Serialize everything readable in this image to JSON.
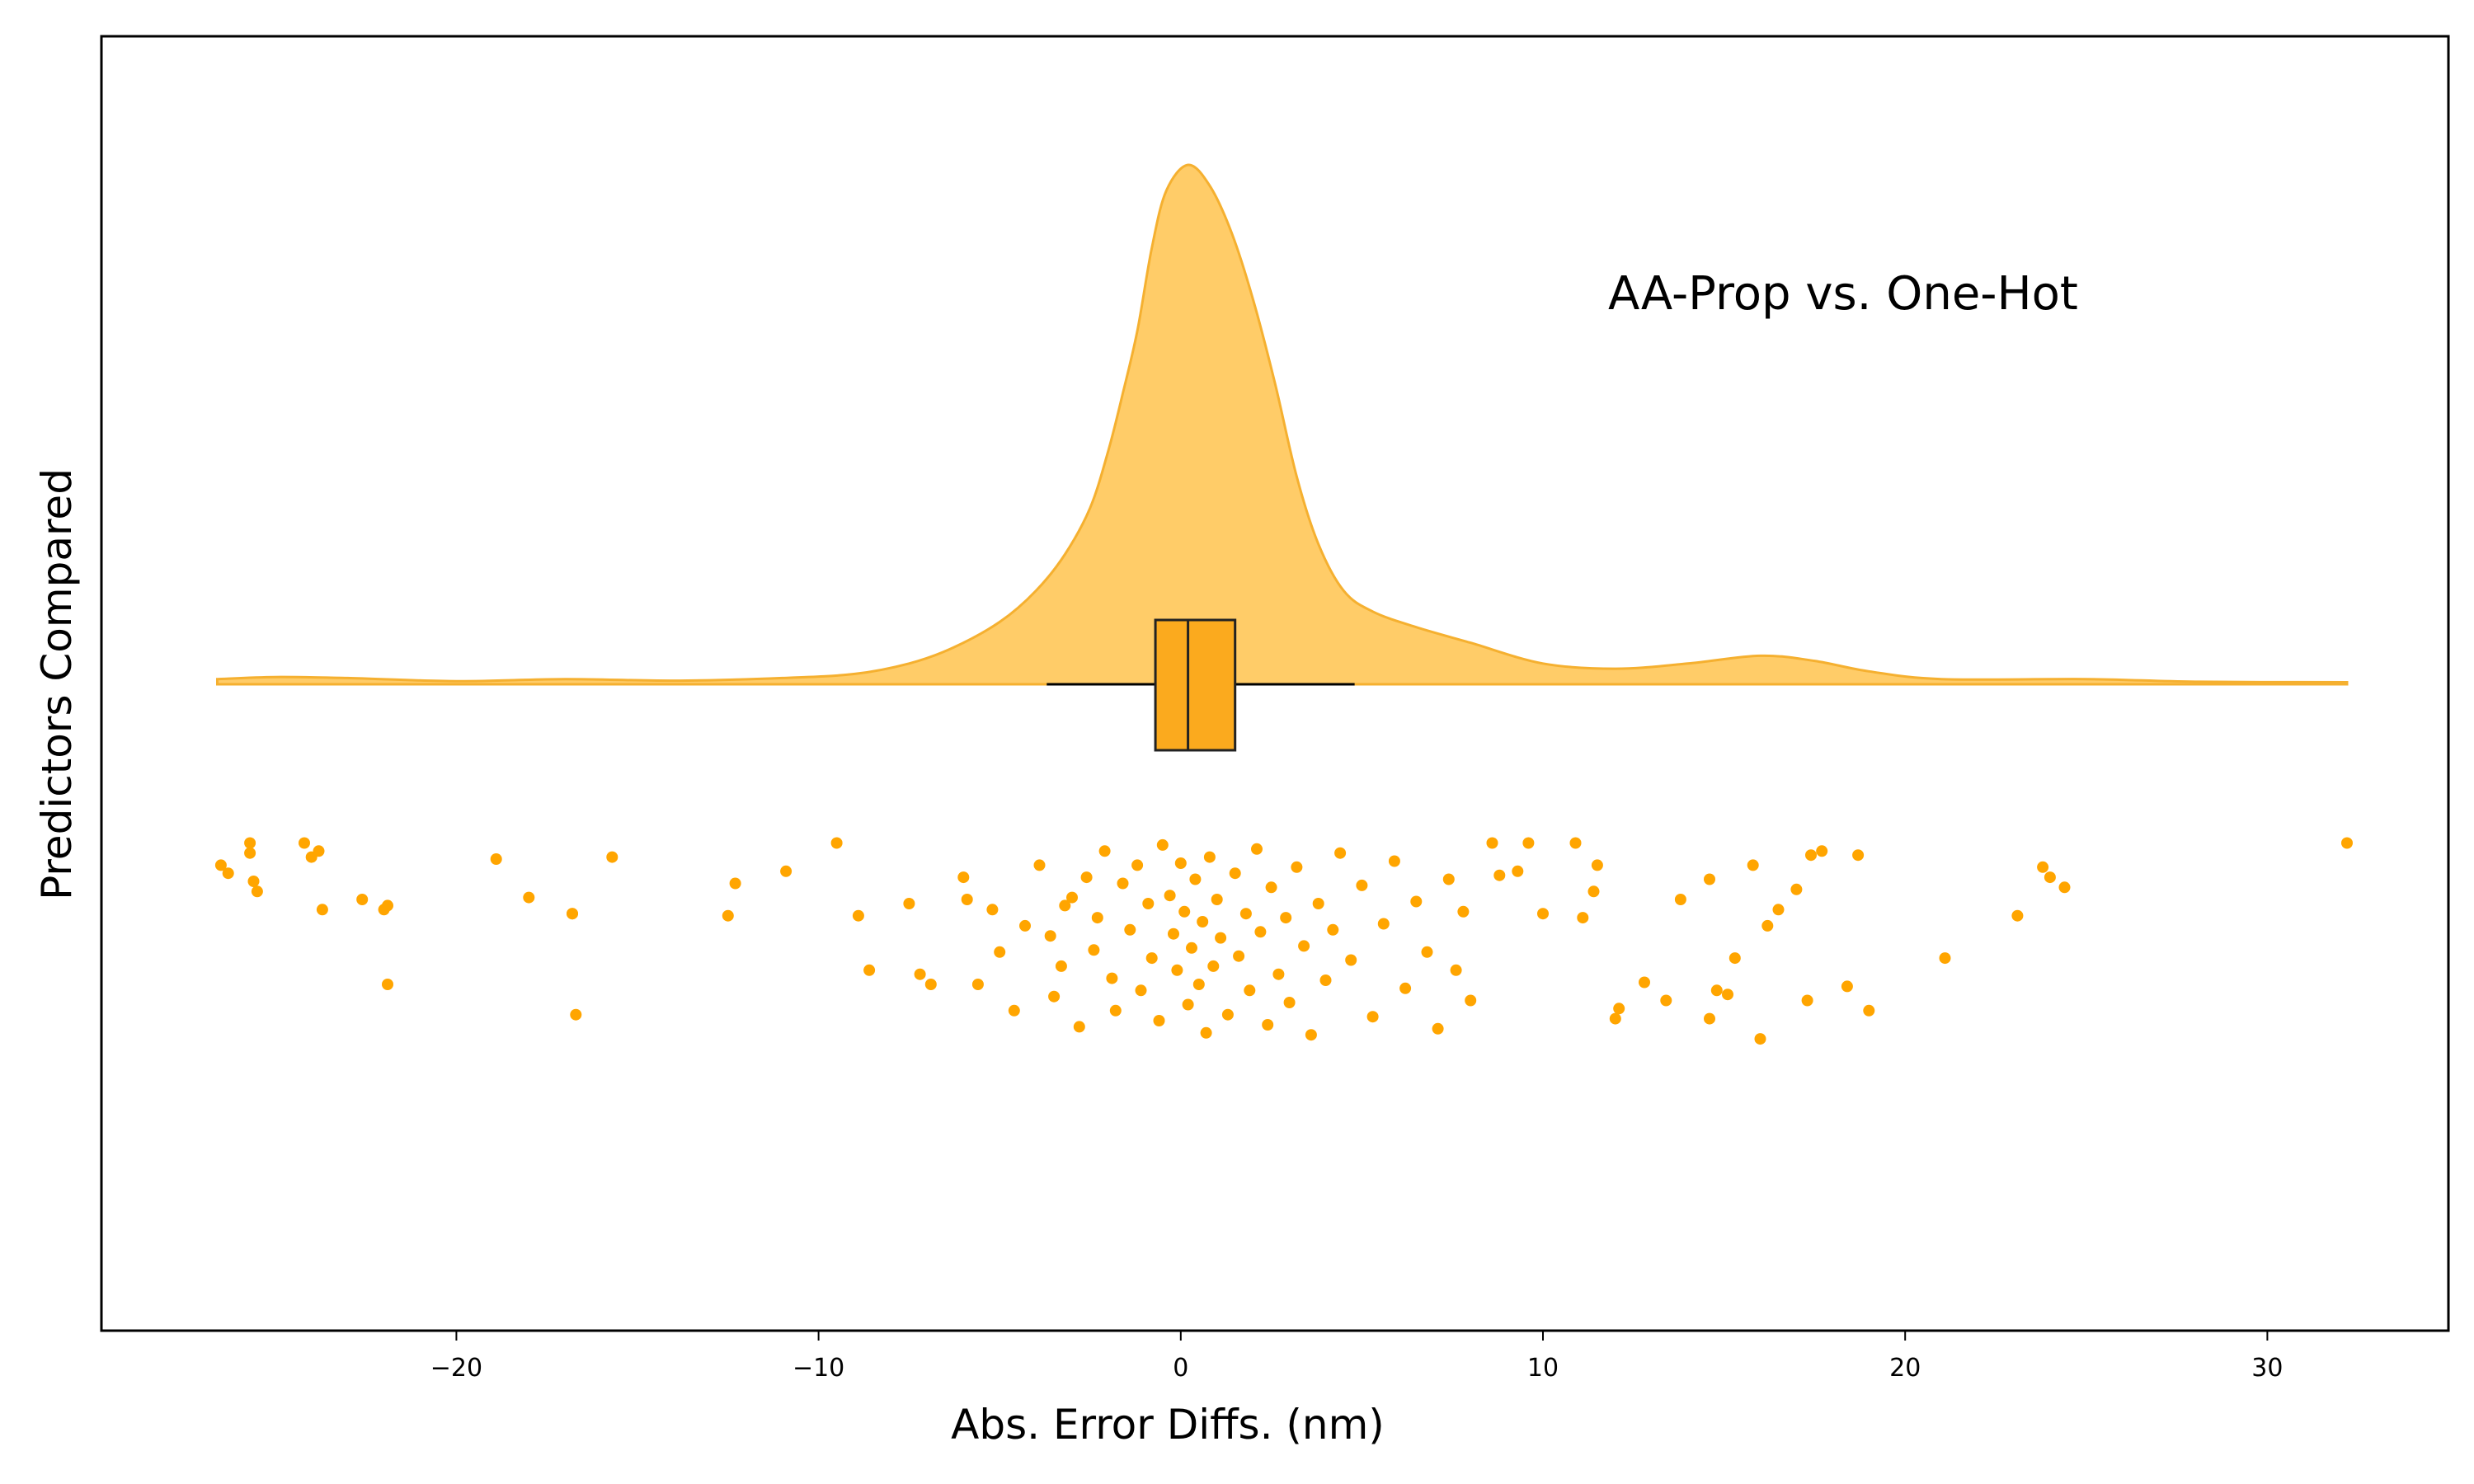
{
  "chart_data": {
    "type": "raincloud",
    "xlabel": "Abs. Error Diffs. (nm)",
    "ylabel": "Predictors Compared",
    "annotation": "AA-Prop vs. One-Hot",
    "xlim": [
      -29.8,
      35
    ],
    "x_ticks": [
      -20,
      -10,
      0,
      10,
      20,
      30
    ],
    "x_tick_labels": [
      "−20",
      "−10",
      "0",
      "10",
      "20",
      "30"
    ],
    "colors": {
      "cloud": "#FFC34D",
      "cloud_edge": "#F5B030",
      "box": "#FBAA1E",
      "rain": "#FFA500",
      "line": "#000000"
    },
    "density": {
      "x": [
        -26.6,
        -25,
        -23,
        -20,
        -17,
        -14,
        -11,
        -9,
        -7.5,
        -6.3,
        -5,
        -4,
        -3.2,
        -2.5,
        -2,
        -1.6,
        -1.2,
        -0.8,
        -0.4,
        0.2,
        0.8,
        1.4,
        2,
        2.6,
        3.2,
        3.8,
        4.5,
        5.3,
        6.5,
        8,
        10,
        12,
        14,
        16,
        17.5,
        19,
        21,
        25,
        28,
        32.2
      ],
      "density": [
        0.01,
        0.014,
        0.012,
        0.006,
        0.01,
        0.007,
        0.012,
        0.02,
        0.04,
        0.07,
        0.12,
        0.18,
        0.25,
        0.34,
        0.45,
        0.56,
        0.68,
        0.84,
        0.95,
        1.0,
        0.96,
        0.87,
        0.74,
        0.58,
        0.4,
        0.27,
        0.18,
        0.14,
        0.11,
        0.08,
        0.04,
        0.03,
        0.04,
        0.055,
        0.045,
        0.025,
        0.01,
        0.01,
        0.005,
        0.004
      ]
    },
    "box": {
      "q1": -0.7,
      "median": 0.2,
      "q3": 1.5,
      "whisker_low": -3.7,
      "whisker_high": 4.8
    },
    "points": [
      [
        -26.5,
        0.12
      ],
      [
        -26.3,
        0.16
      ],
      [
        -25.7,
        0.01
      ],
      [
        -25.7,
        0.06
      ],
      [
        -25.6,
        0.2
      ],
      [
        -25.5,
        0.25
      ],
      [
        -24.2,
        0.01
      ],
      [
        -24.0,
        0.08
      ],
      [
        -23.8,
        0.05
      ],
      [
        -23.7,
        0.34
      ],
      [
        -22.6,
        0.29
      ],
      [
        -22.0,
        0.34
      ],
      [
        -21.9,
        0.32
      ],
      [
        -21.9,
        0.71
      ],
      [
        -18.9,
        0.09
      ],
      [
        -18.0,
        0.28
      ],
      [
        -16.8,
        0.36
      ],
      [
        -16.8,
        0.36
      ],
      [
        -16.7,
        0.86
      ],
      [
        -15.7,
        0.08
      ],
      [
        -12.5,
        0.37
      ],
      [
        -12.3,
        0.21
      ],
      [
        -10.9,
        0.15
      ],
      [
        -9.5,
        0.01
      ],
      [
        -8.9,
        0.37
      ],
      [
        -8.6,
        0.64
      ],
      [
        -7.5,
        0.31
      ],
      [
        -7.2,
        0.66
      ],
      [
        -6.9,
        0.71
      ],
      [
        -6.0,
        0.18
      ],
      [
        -5.9,
        0.29
      ],
      [
        -5.6,
        0.71
      ],
      [
        -5.2,
        0.34
      ],
      [
        -5.0,
        0.55
      ],
      [
        -4.6,
        0.84
      ],
      [
        -4.3,
        0.42
      ],
      [
        -3.9,
        0.12
      ],
      [
        -3.6,
        0.47
      ],
      [
        -3.5,
        0.77
      ],
      [
        -3.3,
        0.62
      ],
      [
        -3.2,
        0.32
      ],
      [
        -3.0,
        0.28
      ],
      [
        -2.8,
        0.92
      ],
      [
        -2.6,
        0.18
      ],
      [
        -2.4,
        0.54
      ],
      [
        -2.3,
        0.38
      ],
      [
        -2.1,
        0.05
      ],
      [
        -1.9,
        0.68
      ],
      [
        -1.8,
        0.84
      ],
      [
        -1.6,
        0.21
      ],
      [
        -1.4,
        0.44
      ],
      [
        -1.2,
        0.12
      ],
      [
        -1.1,
        0.74
      ],
      [
        -0.9,
        0.31
      ],
      [
        -0.8,
        0.58
      ],
      [
        -0.6,
        0.89
      ],
      [
        -0.5,
        0.02
      ],
      [
        -0.3,
        0.27
      ],
      [
        -0.2,
        0.46
      ],
      [
        -0.1,
        0.64
      ],
      [
        0.0,
        0.11
      ],
      [
        0.1,
        0.35
      ],
      [
        0.2,
        0.81
      ],
      [
        0.3,
        0.53
      ],
      [
        0.4,
        0.19
      ],
      [
        0.5,
        0.71
      ],
      [
        0.6,
        0.4
      ],
      [
        0.7,
        0.95
      ],
      [
        0.8,
        0.08
      ],
      [
        0.9,
        0.62
      ],
      [
        1.0,
        0.29
      ],
      [
        1.1,
        0.48
      ],
      [
        1.3,
        0.86
      ],
      [
        1.5,
        0.16
      ],
      [
        1.6,
        0.57
      ],
      [
        1.8,
        0.36
      ],
      [
        1.9,
        0.74
      ],
      [
        2.1,
        0.04
      ],
      [
        2.2,
        0.45
      ],
      [
        2.4,
        0.91
      ],
      [
        2.5,
        0.23
      ],
      [
        2.7,
        0.66
      ],
      [
        2.9,
        0.38
      ],
      [
        3.0,
        0.8
      ],
      [
        3.2,
        0.13
      ],
      [
        3.4,
        0.52
      ],
      [
        3.6,
        0.96
      ],
      [
        3.8,
        0.31
      ],
      [
        4.0,
        0.69
      ],
      [
        4.2,
        0.44
      ],
      [
        4.4,
        0.06
      ],
      [
        4.7,
        0.59
      ],
      [
        5.0,
        0.22
      ],
      [
        5.3,
        0.87
      ],
      [
        5.6,
        0.41
      ],
      [
        5.9,
        0.1
      ],
      [
        6.2,
        0.73
      ],
      [
        6.5,
        0.3
      ],
      [
        6.8,
        0.55
      ],
      [
        7.1,
        0.93
      ],
      [
        7.4,
        0.19
      ],
      [
        7.6,
        0.64
      ],
      [
        7.8,
        0.35
      ],
      [
        8.0,
        0.79
      ],
      [
        8.6,
        0.01
      ],
      [
        8.8,
        0.17
      ],
      [
        9.3,
        0.15
      ],
      [
        9.6,
        0.01
      ],
      [
        10.0,
        0.36
      ],
      [
        10.9,
        0.01
      ],
      [
        11.1,
        0.38
      ],
      [
        11.4,
        0.25
      ],
      [
        11.5,
        0.12
      ],
      [
        12.0,
        0.88
      ],
      [
        12.1,
        0.83
      ],
      [
        12.8,
        0.7
      ],
      [
        13.4,
        0.79
      ],
      [
        13.8,
        0.29
      ],
      [
        14.6,
        0.88
      ],
      [
        14.6,
        0.19
      ],
      [
        14.8,
        0.74
      ],
      [
        15.1,
        0.76
      ],
      [
        15.3,
        0.58
      ],
      [
        15.8,
        0.12
      ],
      [
        16.0,
        0.98
      ],
      [
        16.2,
        0.42
      ],
      [
        16.5,
        0.34
      ],
      [
        17.0,
        0.24
      ],
      [
        17.3,
        0.79
      ],
      [
        17.4,
        0.07
      ],
      [
        17.7,
        0.05
      ],
      [
        18.4,
        0.72
      ],
      [
        18.7,
        0.07
      ],
      [
        19.0,
        0.84
      ],
      [
        21.1,
        0.58
      ],
      [
        23.1,
        0.37
      ],
      [
        23.8,
        0.13
      ],
      [
        24.0,
        0.18
      ],
      [
        24.4,
        0.23
      ],
      [
        32.2,
        0.01
      ]
    ]
  }
}
